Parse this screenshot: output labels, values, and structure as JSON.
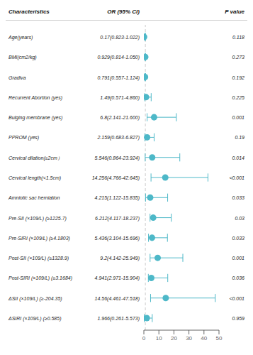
{
  "chart_data": {
    "type": "forest",
    "columns": [
      "Characteristics",
      "OR (95% CI)",
      "P value"
    ],
    "categories": [
      "Age(years)",
      "BMI(cm2/kg)",
      "Gradiva",
      "Recurrent Abortion (yes)",
      "Bulging membrane (yes)",
      "PPROM (yes)",
      "Cervical dilation(≥2cm）",
      "Cervical length(<1.5cm)",
      "Amniotic sac herniation",
      "Pre-SII (×109/L) (≥1225.7)",
      "Pre-SIRI (×109/L) (≥4.1803)",
      "Post-SII (×109/L) (≥1328.9)",
      "Post-SIRI (×109/L) (≥3.1684)",
      "ΔSII (×109/L) (≥-204.35)",
      "ΔSIRI (×109/L) (≥0.585)"
    ],
    "values": [
      0.17,
      0.929,
      0.791,
      1.49,
      6.8,
      2.159,
      5.546,
      14.256,
      4.215,
      6.212,
      5.436,
      9.2,
      4.941,
      14.56,
      1.966
    ],
    "ci_low": [
      0.823,
      0.814,
      0.557,
      0.571,
      2.141,
      0.683,
      0.864,
      4.766,
      1.122,
      4.117,
      3.104,
      4.142,
      2.971,
      4.461,
      0.261
    ],
    "ci_high": [
      1.022,
      1.05,
      1.124,
      4.86,
      21.6,
      6.827,
      23.924,
      42.645,
      15.835,
      18.237,
      15.696,
      25.949,
      15.904,
      47.518,
      5.573
    ],
    "value_labels": [
      "0.17(0.823-1.022)",
      "0.929(0.814-1.050)",
      "0.791(0.557-1.124)",
      "1.49(0.571-4.860)",
      "6.8(2.141-21.600)",
      "2.159(0.683-6.827)",
      "5.546(0.864-23.924)",
      "14.256(4.766-42.645)",
      "4.215(1.122-15.835)",
      "6.212(4.117-18.237)",
      "5.436(3.104-15.696)",
      "9.2(4.142-25.949)",
      "4.941(2.971-15.904)",
      "14.56(4.461-47.518)",
      "1.966(0.261-5.573)"
    ],
    "p_values": [
      "0.118",
      "0.273",
      "0.192",
      "0.225",
      "0.001",
      "0.19",
      "0.014",
      "<0.001",
      "0.033",
      "0.03",
      "0.033",
      "0.001",
      "0.036",
      "<0.001",
      "0.959"
    ],
    "reference_x": 1,
    "color": "#4db8c8",
    "marker": "circle",
    "xlim": [
      0,
      50
    ],
    "xticks": [
      0,
      10,
      20,
      30,
      40,
      50
    ],
    "grid": false
  }
}
